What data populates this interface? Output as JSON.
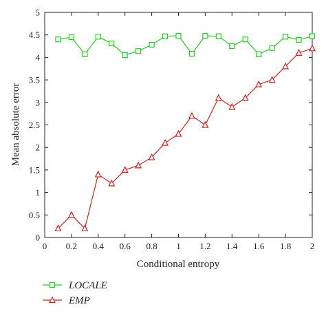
{
  "chart_data": {
    "type": "line",
    "xlabel": "Conditional entropy",
    "ylabel": "Mean absolute error",
    "xlim": [
      0,
      2
    ],
    "ylim": [
      0,
      5
    ],
    "xticks": [
      "0",
      "0.2",
      "0.4",
      "0.6",
      "0.8",
      "1",
      "1.2",
      "1.4",
      "1.6",
      "1.8",
      "2"
    ],
    "yticks": [
      "0",
      "0.5",
      "1",
      "1.5",
      "2",
      "2.5",
      "3",
      "3.5",
      "4",
      "4.5",
      "5"
    ],
    "grid": false,
    "legend_position": "bottom-left",
    "x": [
      0.1,
      0.2,
      0.3,
      0.4,
      0.5,
      0.6,
      0.7,
      0.8,
      0.9,
      1.0,
      1.1,
      1.2,
      1.3,
      1.4,
      1.5,
      1.6,
      1.7,
      1.8,
      1.9,
      2.0
    ],
    "series": [
      {
        "name": "LOCALE",
        "marker": "square",
        "color": "#22cc22",
        "values": [
          4.4,
          4.45,
          4.07,
          4.46,
          4.31,
          4.05,
          4.14,
          4.28,
          4.47,
          4.48,
          4.08,
          4.48,
          4.47,
          4.25,
          4.4,
          4.07,
          4.21,
          4.46,
          4.39,
          4.47
        ]
      },
      {
        "name": "EMP",
        "marker": "triangle",
        "color": "#cc2222",
        "values": [
          0.2,
          0.5,
          0.2,
          1.4,
          1.2,
          1.5,
          1.6,
          1.78,
          2.1,
          2.3,
          2.7,
          2.5,
          3.1,
          2.9,
          3.1,
          3.4,
          3.5,
          3.8,
          4.1,
          4.2
        ]
      }
    ]
  }
}
